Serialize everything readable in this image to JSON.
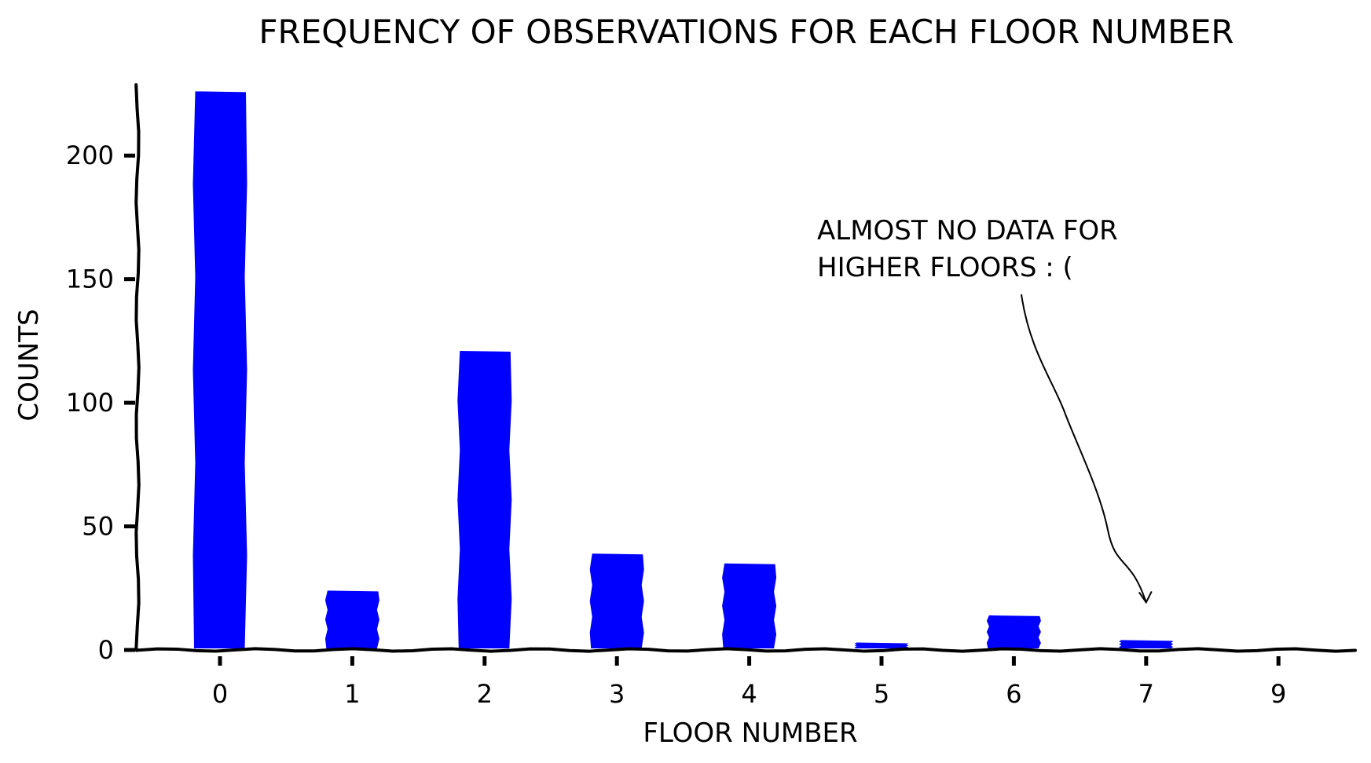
{
  "chart_data": {
    "type": "bar",
    "title": "FREQUENCY OF OBSERVATIONS FOR EACH FLOOR NUMBER",
    "xlabel": "FLOOR NUMBER",
    "ylabel": "COUNTS",
    "categories": [
      "0",
      "1",
      "2",
      "3",
      "4",
      "5",
      "6",
      "7",
      "9"
    ],
    "values": [
      226,
      24,
      121,
      39,
      35,
      3,
      14,
      4,
      0
    ],
    "ylim": [
      0,
      235
    ],
    "yticks": [
      0,
      50,
      100,
      150,
      200
    ],
    "bar_color": "#0000ff",
    "grid": false,
    "annotation": {
      "lines": [
        "ALMOST NO DATA FOR",
        "HIGHER FLOORS : ("
      ],
      "points_to": "7"
    }
  }
}
